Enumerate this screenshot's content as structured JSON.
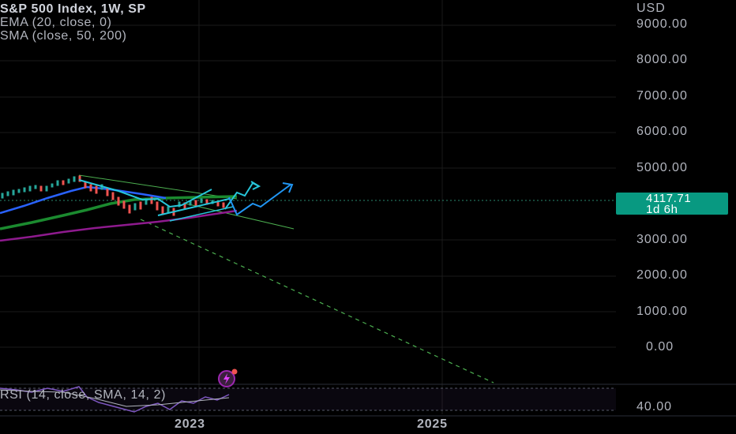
{
  "legend": {
    "title": "S&P 500 Index, 1W, SP",
    "ema": "EMA (20, close, 0)",
    "sma": "SMA (close, 50, 200)"
  },
  "price_axis": {
    "currency": "USD",
    "ticks": [
      "9000.00",
      "8000.00",
      "7000.00",
      "6000.00",
      "5000.00",
      "3000.00",
      "2000.00",
      "1000.00",
      "0.00"
    ]
  },
  "last_price": {
    "value": "4117.71",
    "countdown": "1d 6h",
    "color": "#089981"
  },
  "rsi": {
    "legend": "RSI (14, close, SMA, 14, 2)",
    "tick": "40.00"
  },
  "time_axis": {
    "labels": [
      "2023",
      "2025"
    ]
  },
  "colors": {
    "background": "#000000",
    "ema": "#2962ff",
    "sma50": "#1b8a2f",
    "sma200": "#8e1a8e",
    "drawing_cyan": "#26c6da",
    "drawing_blue": "#2196f3",
    "trend_green": "#4caf50"
  },
  "icons": {
    "flash": "lightning-icon"
  }
}
